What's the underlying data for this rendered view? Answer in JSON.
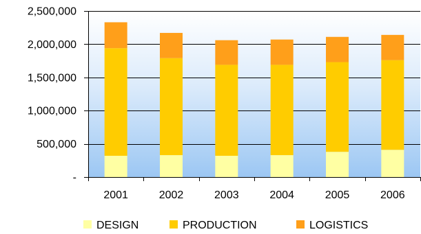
{
  "chart_data": {
    "type": "bar",
    "stacked": true,
    "categories": [
      "2001",
      "2002",
      "2003",
      "2004",
      "2005",
      "2006"
    ],
    "series": [
      {
        "name": "DESIGN",
        "color": "#ffffa3",
        "values": [
          320000,
          330000,
          320000,
          330000,
          380000,
          410000
        ]
      },
      {
        "name": "PRODUCTION",
        "color": "#ffcc00",
        "values": [
          1620000,
          1460000,
          1370000,
          1360000,
          1350000,
          1350000
        ]
      },
      {
        "name": "LOGISTICS",
        "color": "#ff9f1a",
        "values": [
          390000,
          380000,
          370000,
          380000,
          380000,
          380000
        ]
      }
    ],
    "ylim": [
      0,
      2500000
    ],
    "y_ticks": [
      {
        "value": 0,
        "label": "-"
      },
      {
        "value": 500000,
        "label": "500,000"
      },
      {
        "value": 1000000,
        "label": "1,000,000"
      },
      {
        "value": 1500000,
        "label": "1,500,000"
      },
      {
        "value": 2000000,
        "label": "2,000,000"
      },
      {
        "value": 2500000,
        "label": "2,500,000"
      }
    ],
    "grid": true,
    "plot_background": "gradient white to light blue",
    "legend_position": "bottom"
  }
}
